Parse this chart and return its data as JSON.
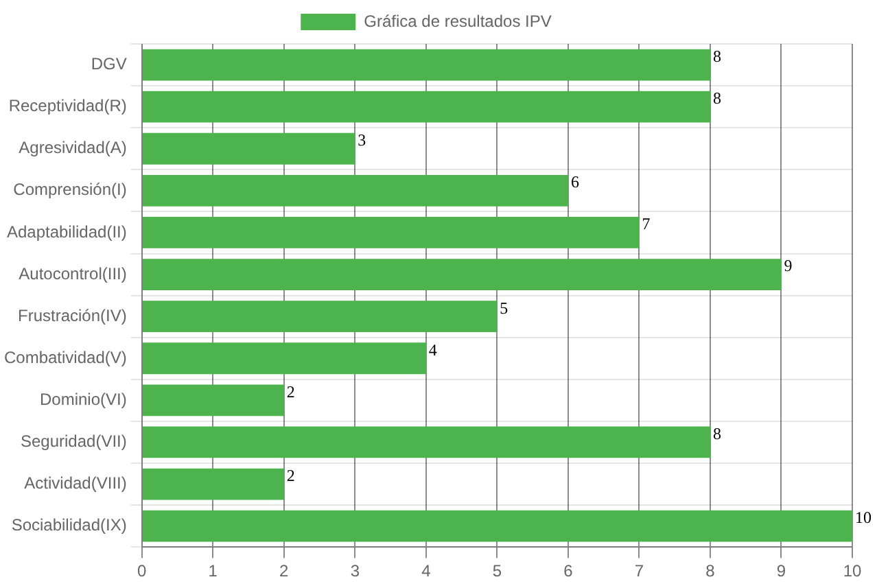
{
  "chart_data": {
    "type": "bar",
    "orientation": "horizontal",
    "categories": [
      "DGV",
      "Receptividad(R)",
      "Agresividad(A)",
      "Comprensión(I)",
      "Adaptabilidad(II)",
      "Autocontrol(III)",
      "Frustración(IV)",
      "Combatividad(V)",
      "Dominio(VI)",
      "Seguridad(VII)",
      "Actividad(VIII)",
      "Sociabilidad(IX)"
    ],
    "series": [
      {
        "name": "Gráfica de resultados IPV",
        "color": "#4db34d",
        "values": [
          8,
          8,
          3,
          6,
          7,
          9,
          5,
          4,
          2,
          8,
          2,
          10
        ]
      }
    ],
    "xlim": [
      0,
      10
    ],
    "xticks": [
      0,
      1,
      2,
      3,
      4,
      5,
      6,
      7,
      8,
      9,
      10
    ],
    "grid": true,
    "legend": "top",
    "data_labels": true
  }
}
